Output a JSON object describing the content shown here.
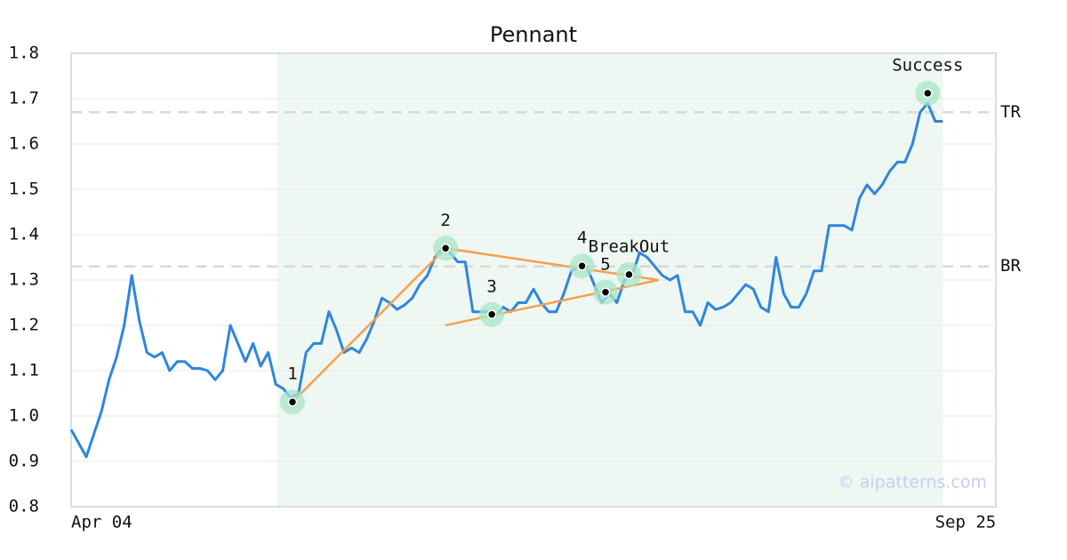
{
  "chart_data": {
    "type": "line",
    "title": "Pennant",
    "x": [
      0,
      1,
      2,
      3,
      4,
      5,
      6,
      7,
      8,
      9,
      10,
      11,
      12,
      13,
      14,
      15,
      16,
      17,
      18,
      19,
      20,
      21,
      22,
      23,
      24,
      25,
      26,
      27,
      28,
      29,
      30,
      31,
      32,
      33,
      34,
      35,
      36,
      37,
      38,
      39,
      40,
      41,
      42,
      43,
      44,
      45,
      46,
      47,
      48,
      49,
      50,
      51,
      52,
      53,
      54,
      55,
      56,
      57,
      58,
      59,
      60,
      61,
      62,
      63,
      64,
      65,
      66,
      67,
      68,
      69,
      70,
      71,
      72,
      73,
      74,
      75,
      76,
      77,
      78,
      79,
      80,
      81,
      82,
      83,
      84,
      85,
      86,
      87,
      88,
      89,
      90,
      91,
      92,
      93,
      94,
      95,
      96,
      97,
      98,
      99,
      100,
      101,
      102,
      103,
      104,
      105,
      106,
      107,
      108,
      109,
      110,
      111,
      112,
      113,
      114,
      115
    ],
    "series": [
      {
        "color": "#2e86de",
        "values": [
          0.97,
          0.94,
          0.91,
          0.96,
          1.01,
          1.08,
          1.13,
          1.2,
          1.31,
          1.21,
          1.14,
          1.13,
          1.14,
          1.1,
          1.12,
          1.12,
          1.105,
          1.105,
          1.1,
          1.08,
          1.1,
          1.2,
          1.16,
          1.12,
          1.16,
          1.11,
          1.14,
          1.07,
          1.06,
          1.04,
          1.05,
          1.14,
          1.16,
          1.16,
          1.23,
          1.19,
          1.14,
          1.15,
          1.14,
          1.17,
          1.21,
          1.26,
          1.25,
          1.235,
          1.245,
          1.26,
          1.29,
          1.31,
          1.35,
          1.37,
          1.36,
          1.34,
          1.34,
          1.23,
          1.23,
          1.23,
          1.22,
          1.24,
          1.23,
          1.25,
          1.25,
          1.28,
          1.25,
          1.23,
          1.23,
          1.27,
          1.32,
          1.33,
          1.33,
          1.29,
          1.25,
          1.27,
          1.25,
          1.3,
          1.31,
          1.36,
          1.35,
          1.33,
          1.31,
          1.3,
          1.31,
          1.23,
          1.23,
          1.2,
          1.25,
          1.235,
          1.24,
          1.25,
          1.27,
          1.29,
          1.28,
          1.24,
          1.23,
          1.35,
          1.27,
          1.24,
          1.24,
          1.27,
          1.32,
          1.32,
          1.42,
          1.42,
          1.42,
          1.41,
          1.48,
          1.51,
          1.49,
          1.51,
          1.54,
          1.56,
          1.56,
          1.6,
          1.67,
          1.69,
          1.65,
          1.65
        ]
      }
    ],
    "xlim": [
      0,
      122
    ],
    "xticks": [
      {
        "value": 0,
        "label": "Apr 04"
      },
      {
        "value": 118,
        "label": "Sep 25"
      }
    ],
    "ylim": [
      0.8,
      1.8
    ],
    "yticks": [
      0.8,
      0.9,
      {
        "value": 1.0,
        "label": "1.0"
      },
      1.1,
      1.2,
      1.3,
      1.4,
      1.5,
      1.6,
      1.7,
      1.8
    ],
    "grid": true,
    "highlight_range": [
      27.2,
      115
    ],
    "reference_lines": [
      {
        "label": "TR",
        "value": 1.67
      },
      {
        "label": "BR",
        "value": 1.33
      }
    ],
    "pattern_points": [
      {
        "label": "1",
        "x": 29.2,
        "value": 1.031
      },
      {
        "label": "2",
        "x": 49.4,
        "value": 1.37
      },
      {
        "label": "3",
        "x": 55.5,
        "value": 1.224
      },
      {
        "label": "4",
        "x": 67.4,
        "value": 1.331
      },
      {
        "label": "5",
        "x": 70.5,
        "value": 1.273
      },
      {
        "label": "BreakOut",
        "x": 73.6,
        "value": 1.312
      },
      {
        "label": "Success",
        "x": 113,
        "value": 1.712
      }
    ],
    "trend_color": "#f6a04d",
    "trendlines": [
      {
        "x": [
          29.2,
          49.4
        ],
        "values": [
          1.031,
          1.37
        ]
      },
      {
        "x": [
          49.4,
          77.5
        ],
        "values": [
          1.37,
          1.3
        ]
      },
      {
        "x": [
          49.4,
          77.5
        ],
        "values": [
          1.2,
          1.3
        ]
      }
    ],
    "watermark": "© aipatterns.com"
  }
}
